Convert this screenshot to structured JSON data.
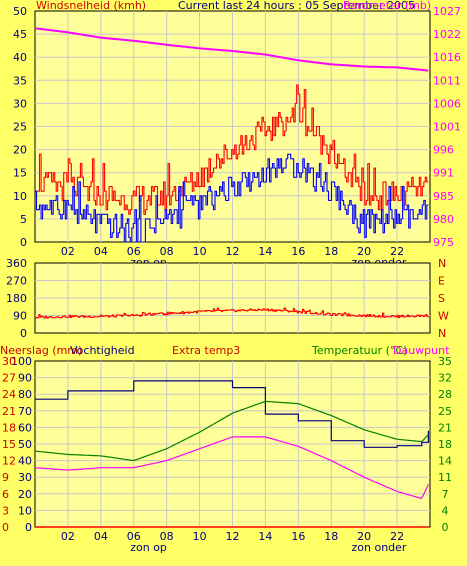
{
  "colors": {
    "background": "#ffff66",
    "plot_background": "#ffff99",
    "grid": "#c8c8c8",
    "frame": "#000000",
    "wind_gust": "#ff0000",
    "wind_avg": "#0000ff",
    "wind_dir": "#ff0000",
    "barometer": "#ff00ff",
    "rain": "#ff0000",
    "humidity": "#000080",
    "extra_temp": "#ff0000",
    "temperature": "#008000",
    "dewpoint": "#ff00ff"
  },
  "chart_data": [
    {
      "type": "line",
      "title": "Current last 24 hours : 05 September 2005",
      "ylabel_left": "Windsnelheid (kmh)",
      "ylabel_right": "Barometer (mb)",
      "x_ticks": [
        "02",
        "04",
        "06",
        "08",
        "10",
        "12",
        "14",
        "16",
        "18",
        "20",
        "22"
      ],
      "x_annotations": [
        "zon op",
        "zon onder"
      ],
      "y_ticks_left": [
        0,
        5,
        10,
        15,
        20,
        25,
        30,
        35,
        40,
        45,
        50
      ],
      "y_ticks_right": [
        975,
        980,
        985,
        991,
        996,
        1001,
        1006,
        1011,
        1016,
        1022,
        1027
      ],
      "ylim_left": [
        0,
        50
      ],
      "ylim_right": [
        975,
        1027
      ],
      "grid": true,
      "x_hours": [
        0,
        2,
        4,
        6,
        8,
        10,
        12,
        14,
        16,
        18,
        20,
        22,
        23.9
      ],
      "series": [
        {
          "name": "Barometer (mb)",
          "axis": "right",
          "color": "#ff00ff",
          "values": [
            1023.1,
            1022.2,
            1021.0,
            1020.3,
            1019.4,
            1018.6,
            1018.0,
            1017.2,
            1015.9,
            1015.0,
            1014.5,
            1014.3,
            1013.6
          ]
        },
        {
          "axis": "left",
          "color": "#ff0000",
          "values": [
            13,
            12,
            10,
            9,
            10,
            14,
            20,
            24,
            28,
            19,
            10,
            10,
            12
          ]
        },
        {
          "axis": "left",
          "color": "#0000ff",
          "values": [
            8,
            7,
            4,
            2,
            5,
            8,
            12,
            15,
            17,
            11,
            4,
            5,
            6
          ]
        }
      ]
    },
    {
      "type": "line",
      "ylabel_right": [
        "N",
        "W",
        "S",
        "E",
        "N"
      ],
      "y_ticks_left": [
        0,
        90,
        180,
        270,
        360
      ],
      "ylim_left": [
        0,
        360
      ],
      "grid": true,
      "x_hours": [
        0,
        2,
        4,
        6,
        8,
        10,
        12,
        14,
        16,
        18,
        20,
        22,
        23.9
      ],
      "series": [
        {
          "axis": "left",
          "color": "#ff0000",
          "values": [
            80,
            85,
            85,
            90,
            100,
            110,
            115,
            120,
            110,
            95,
            90,
            85,
            90
          ]
        }
      ]
    },
    {
      "type": "line",
      "ylabel_left_1": "Neerslag (mm)",
      "ylabel_left_2": "Vochtigheid",
      "label_center": "Extra temp3",
      "ylabel_right_1": "Temperatuur (°C)",
      "ylabel_right_2": "Dauwpunt",
      "x_ticks": [
        "02",
        "04",
        "06",
        "08",
        "10",
        "12",
        "14",
        "16",
        "18",
        "20",
        "22"
      ],
      "x_annotations": [
        "zon op",
        "zon onder"
      ],
      "y_ticks_humidity": [
        0,
        10,
        20,
        30,
        40,
        50,
        60,
        70,
        80,
        90,
        100
      ],
      "y_ticks_rain": [
        0,
        3,
        6,
        9,
        12,
        15,
        18,
        21,
        24,
        27,
        30
      ],
      "y_ticks_right": [
        0,
        4,
        7,
        11,
        14,
        18,
        21,
        25,
        28,
        32,
        35
      ],
      "ylim_humidity": [
        0,
        100
      ],
      "ylim_right": [
        0,
        35
      ],
      "grid": true,
      "x_hours": [
        0,
        2,
        4,
        6,
        8,
        10,
        12,
        14,
        16,
        18,
        20,
        22,
        23.5,
        23.9
      ],
      "series": [
        {
          "name": "Vochtigheid",
          "axis": "humidity",
          "color": "#000080",
          "values": [
            77,
            82,
            82,
            88,
            88,
            88,
            84,
            68,
            64,
            52,
            48,
            49,
            51,
            58
          ]
        },
        {
          "name": "Temperatuur (°C)",
          "axis": "right",
          "color": "#008000",
          "values": [
            16.0,
            15.3,
            15.0,
            14.0,
            16.5,
            20.0,
            24.0,
            26.5,
            26.0,
            23.5,
            20.5,
            18.5,
            18.0,
            19.5
          ]
        },
        {
          "name": "Dauwpunt",
          "axis": "right",
          "color": "#ff00ff",
          "values": [
            12.5,
            12.0,
            12.5,
            12.5,
            14.0,
            16.5,
            19.0,
            19.0,
            17.0,
            14.0,
            10.5,
            7.5,
            6.0,
            9.0
          ]
        },
        {
          "name": "Neerslag (mm)",
          "axis": "rain",
          "color": "#ff0000",
          "values": [
            0,
            0,
            0,
            0,
            0,
            0,
            0,
            0,
            0,
            0,
            0,
            0,
            0,
            0
          ]
        }
      ]
    }
  ]
}
